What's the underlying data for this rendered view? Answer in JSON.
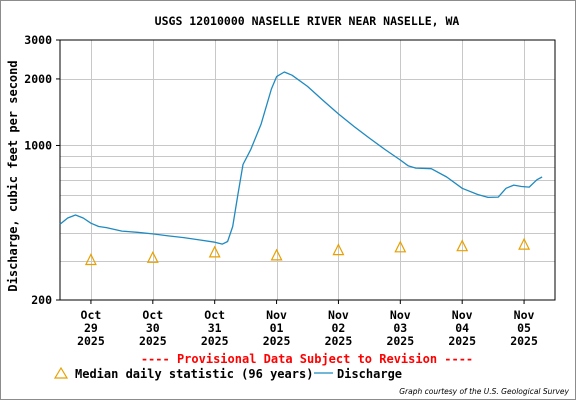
{
  "chart_data": {
    "type": "line",
    "title": "USGS 12010000 NASELLE RIVER NEAR NASELLE, WA",
    "ylabel": "Discharge, cubic feet per second",
    "xlabel": "",
    "y_scale": "log",
    "ylim": [
      200,
      3000
    ],
    "y_ticks": [
      {
        "value": 3000,
        "label": "3000"
      },
      {
        "value": 2000,
        "label": "2000"
      },
      {
        "value": 1000,
        "label": "1000"
      },
      {
        "value": 200,
        "label": "200"
      }
    ],
    "y_minor_grid": [
      300,
      400,
      500,
      600,
      700,
      800,
      900
    ],
    "xlim": [
      "2025-10-28T12:00",
      "2025-11-05T12:00"
    ],
    "x_ticks": [
      {
        "date": "2025-10-29T00:00",
        "label": [
          "Oct",
          "29",
          "2025"
        ]
      },
      {
        "date": "2025-10-30T00:00",
        "label": [
          "Oct",
          "30",
          "2025"
        ]
      },
      {
        "date": "2025-10-31T00:00",
        "label": [
          "Oct",
          "31",
          "2025"
        ]
      },
      {
        "date": "2025-11-01T00:00",
        "label": [
          "Nov",
          "01",
          "2025"
        ]
      },
      {
        "date": "2025-11-02T00:00",
        "label": [
          "Nov",
          "02",
          "2025"
        ]
      },
      {
        "date": "2025-11-03T00:00",
        "label": [
          "Nov",
          "03",
          "2025"
        ]
      },
      {
        "date": "2025-11-04T00:00",
        "label": [
          "Nov",
          "04",
          "2025"
        ]
      },
      {
        "date": "2025-11-05T00:00",
        "label": [
          "Nov",
          "05",
          "2025"
        ]
      }
    ],
    "grid": true,
    "series": [
      {
        "name": "Median daily statistic (96 years)",
        "kind": "marker",
        "marker": "triangle",
        "color": "#e8a000",
        "points": [
          {
            "x": "2025-10-29T00:00",
            "y": 305
          },
          {
            "x": "2025-10-30T00:00",
            "y": 312
          },
          {
            "x": "2025-10-31T00:00",
            "y": 330
          },
          {
            "x": "2025-11-01T00:00",
            "y": 320
          },
          {
            "x": "2025-11-02T00:00",
            "y": 338
          },
          {
            "x": "2025-11-03T00:00",
            "y": 348
          },
          {
            "x": "2025-11-04T00:00",
            "y": 352
          },
          {
            "x": "2025-11-05T00:00",
            "y": 358
          }
        ]
      },
      {
        "name": "Discharge",
        "kind": "line",
        "color": "#1f8ac0",
        "points": [
          {
            "x": "2025-10-28T12:00",
            "y": 440
          },
          {
            "x": "2025-10-28T15:00",
            "y": 470
          },
          {
            "x": "2025-10-28T18:00",
            "y": 485
          },
          {
            "x": "2025-10-28T21:00",
            "y": 470
          },
          {
            "x": "2025-10-29T00:00",
            "y": 445
          },
          {
            "x": "2025-10-29T03:00",
            "y": 430
          },
          {
            "x": "2025-10-29T06:00",
            "y": 425
          },
          {
            "x": "2025-10-29T12:00",
            "y": 410
          },
          {
            "x": "2025-10-29T18:00",
            "y": 405
          },
          {
            "x": "2025-10-30T00:00",
            "y": 398
          },
          {
            "x": "2025-10-30T06:00",
            "y": 390
          },
          {
            "x": "2025-10-30T12:00",
            "y": 383
          },
          {
            "x": "2025-10-30T18:00",
            "y": 374
          },
          {
            "x": "2025-10-31T00:00",
            "y": 365
          },
          {
            "x": "2025-10-31T03:00",
            "y": 358
          },
          {
            "x": "2025-10-31T05:00",
            "y": 368
          },
          {
            "x": "2025-10-31T07:00",
            "y": 430
          },
          {
            "x": "2025-10-31T09:00",
            "y": 600
          },
          {
            "x": "2025-10-31T11:00",
            "y": 820
          },
          {
            "x": "2025-10-31T14:00",
            "y": 960
          },
          {
            "x": "2025-10-31T18:00",
            "y": 1250
          },
          {
            "x": "2025-10-31T22:00",
            "y": 1800
          },
          {
            "x": "2025-11-01T00:00",
            "y": 2050
          },
          {
            "x": "2025-11-01T03:00",
            "y": 2150
          },
          {
            "x": "2025-11-01T06:00",
            "y": 2080
          },
          {
            "x": "2025-11-01T12:00",
            "y": 1850
          },
          {
            "x": "2025-11-01T18:00",
            "y": 1600
          },
          {
            "x": "2025-11-02T00:00",
            "y": 1390
          },
          {
            "x": "2025-11-02T06:00",
            "y": 1220
          },
          {
            "x": "2025-11-02T12:00",
            "y": 1080
          },
          {
            "x": "2025-11-02T18:00",
            "y": 960
          },
          {
            "x": "2025-11-03T00:00",
            "y": 860
          },
          {
            "x": "2025-11-03T03:00",
            "y": 810
          },
          {
            "x": "2025-11-03T06:00",
            "y": 790
          },
          {
            "x": "2025-11-03T12:00",
            "y": 785
          },
          {
            "x": "2025-11-03T18:00",
            "y": 720
          },
          {
            "x": "2025-11-04T00:00",
            "y": 640
          },
          {
            "x": "2025-11-04T06:00",
            "y": 600
          },
          {
            "x": "2025-11-04T10:00",
            "y": 582
          },
          {
            "x": "2025-11-04T14:00",
            "y": 584
          },
          {
            "x": "2025-11-04T17:00",
            "y": 640
          },
          {
            "x": "2025-11-04T20:00",
            "y": 662
          },
          {
            "x": "2025-11-04T23:00",
            "y": 652
          },
          {
            "x": "2025-11-05T02:00",
            "y": 648
          },
          {
            "x": "2025-11-05T05:00",
            "y": 700
          },
          {
            "x": "2025-11-05T07:00",
            "y": 720
          }
        ]
      }
    ]
  },
  "provisional_note": "---- Provisional Data Subject to Revision ----",
  "legend": {
    "median_label": "Median daily statistic (96 years)",
    "discharge_label": "Discharge"
  },
  "credit": "Graph courtesy of the U.S. Geological Survey",
  "colors": {
    "discharge": "#1f8ac0",
    "median": "#e8a000",
    "provisional": "#ff0000",
    "grid": "#c8c8c8"
  }
}
